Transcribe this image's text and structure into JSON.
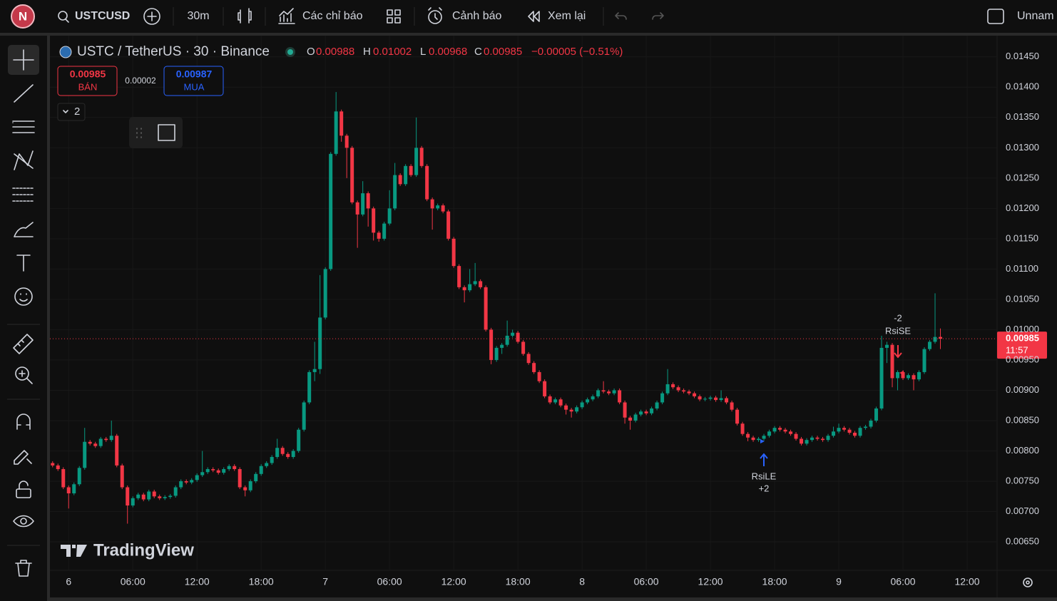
{
  "toolbar": {
    "avatar": "N",
    "symbol": "USTCUSD",
    "interval": "30m",
    "indicators": "Các chỉ báo",
    "alerts": "Cảnh báo",
    "replay": "Xem lại",
    "layout_name": "Unnam"
  },
  "legend": {
    "title": "USTC / TetherUS · 30 · Binance",
    "open_label": "O",
    "open": "0.00988",
    "high_label": "H",
    "high": "0.01002",
    "low_label": "L",
    "low": "0.00968",
    "close_label": "C",
    "close": "0.00985",
    "change": "−0.00005 (−0.51%)"
  },
  "trade": {
    "sell_price": "0.00985",
    "sell_label": "BÁN",
    "spread": "0.00002",
    "buy_price": "0.00987",
    "buy_label": "MUA"
  },
  "indicators_count": "2",
  "watermark": "TradingView",
  "chart_data": {
    "type": "candlestick",
    "colors": {
      "up": "#089981",
      "down": "#f23645"
    },
    "ylim": [
      0.00603,
      0.01485
    ],
    "xlim": [
      -0.5,
      176.6
    ],
    "grid": true,
    "yticks": [
      {
        "value": 0.0065,
        "label": "0.00650"
      },
      {
        "value": 0.007,
        "label": "0.00700"
      },
      {
        "value": 0.0075,
        "label": "0.00750"
      },
      {
        "value": 0.008,
        "label": "0.00800"
      },
      {
        "value": 0.0085,
        "label": "0.00850"
      },
      {
        "value": 0.009,
        "label": "0.00900"
      },
      {
        "value": 0.0095,
        "label": "0.00950"
      },
      {
        "value": 0.01,
        "label": "0.01000"
      },
      {
        "value": 0.0105,
        "label": "0.01050"
      },
      {
        "value": 0.011,
        "label": "0.01100"
      },
      {
        "value": 0.0115,
        "label": "0.01150"
      },
      {
        "value": 0.012,
        "label": "0.01200"
      },
      {
        "value": 0.0125,
        "label": "0.01250"
      },
      {
        "value": 0.013,
        "label": "0.01300"
      },
      {
        "value": 0.0135,
        "label": "0.01350"
      },
      {
        "value": 0.014,
        "label": "0.01400"
      },
      {
        "value": 0.0145,
        "label": "0.01450"
      }
    ],
    "xticks": [
      {
        "value": 3,
        "label": "6"
      },
      {
        "value": 15,
        "label": "06:00"
      },
      {
        "value": 27,
        "label": "12:00"
      },
      {
        "value": 39,
        "label": "18:00"
      },
      {
        "value": 51,
        "label": "7"
      },
      {
        "value": 63,
        "label": "06:00"
      },
      {
        "value": 75,
        "label": "12:00"
      },
      {
        "value": 87,
        "label": "18:00"
      },
      {
        "value": 99,
        "label": "8"
      },
      {
        "value": 111,
        "label": "06:00"
      },
      {
        "value": 123,
        "label": "12:00"
      },
      {
        "value": 135,
        "label": "18:00"
      },
      {
        "value": 147,
        "label": "9"
      },
      {
        "value": 159,
        "label": "06:00"
      },
      {
        "value": 171,
        "label": "12:00"
      }
    ],
    "last_price": {
      "value": 0.00985,
      "label": "0.00985",
      "countdown": "11:57"
    },
    "annotations": [
      {
        "label": "RsiLE",
        "quantity": "+2"
      },
      {
        "label": "RsiSE",
        "quantity": "-2"
      }
    ],
    "candles": [
      [
        0.0078,
        0.00783,
        0.00773,
        0.00776
      ],
      [
        0.00776,
        0.00779,
        0.00767,
        0.0077
      ],
      [
        0.0077,
        0.00773,
        0.00737,
        0.0074
      ],
      [
        0.0074,
        0.00743,
        0.00705,
        0.0073
      ],
      [
        0.0073,
        0.00748,
        0.00727,
        0.00745
      ],
      [
        0.00745,
        0.00775,
        0.00742,
        0.00772
      ],
      [
        0.00772,
        0.00838,
        0.00769,
        0.00815
      ],
      [
        0.00815,
        0.00818,
        0.00809,
        0.00812
      ],
      [
        0.00812,
        0.00815,
        0.00805,
        0.00808
      ],
      [
        0.00808,
        0.00823,
        0.00805,
        0.0082
      ],
      [
        0.0082,
        0.00823,
        0.00815,
        0.00818
      ],
      [
        0.00818,
        0.0085,
        0.00815,
        0.00825
      ],
      [
        0.00825,
        0.00828,
        0.00773,
        0.00776
      ],
      [
        0.00776,
        0.00779,
        0.00737,
        0.0074
      ],
      [
        0.0074,
        0.00743,
        0.0068,
        0.0071
      ],
      [
        0.0071,
        0.00725,
        0.00707,
        0.00722
      ],
      [
        0.00722,
        0.00731,
        0.00719,
        0.00728
      ],
      [
        0.00728,
        0.00731,
        0.00717,
        0.0072
      ],
      [
        0.0072,
        0.00736,
        0.00717,
        0.00733
      ],
      [
        0.00733,
        0.00736,
        0.00722,
        0.00725
      ],
      [
        0.00725,
        0.00728,
        0.00719,
        0.00722
      ],
      [
        0.00722,
        0.00727,
        0.00719,
        0.00724
      ],
      [
        0.00724,
        0.00729,
        0.00721,
        0.00726
      ],
      [
        0.00726,
        0.00743,
        0.00723,
        0.0074
      ],
      [
        0.0074,
        0.00753,
        0.00737,
        0.0075
      ],
      [
        0.0075,
        0.00753,
        0.00745,
        0.00748
      ],
      [
        0.00748,
        0.00755,
        0.00745,
        0.00752
      ],
      [
        0.00752,
        0.00763,
        0.00749,
        0.0076
      ],
      [
        0.0076,
        0.008,
        0.00757,
        0.00765
      ],
      [
        0.00765,
        0.00773,
        0.00762,
        0.0077
      ],
      [
        0.0077,
        0.00773,
        0.00765,
        0.00768
      ],
      [
        0.00768,
        0.00771,
        0.00761,
        0.00764
      ],
      [
        0.00764,
        0.00773,
        0.00761,
        0.0077
      ],
      [
        0.0077,
        0.00778,
        0.00767,
        0.00775
      ],
      [
        0.00775,
        0.00778,
        0.00767,
        0.0077
      ],
      [
        0.0077,
        0.00773,
        0.00737,
        0.0074
      ],
      [
        0.0074,
        0.00743,
        0.00725,
        0.00735
      ],
      [
        0.00735,
        0.00753,
        0.00732,
        0.0075
      ],
      [
        0.0075,
        0.00765,
        0.00747,
        0.00762
      ],
      [
        0.00762,
        0.00778,
        0.00759,
        0.00775
      ],
      [
        0.00775,
        0.00783,
        0.00772,
        0.0078
      ],
      [
        0.0078,
        0.00793,
        0.00777,
        0.0079
      ],
      [
        0.0079,
        0.0082,
        0.00787,
        0.00805
      ],
      [
        0.00805,
        0.00808,
        0.00792,
        0.00795
      ],
      [
        0.00795,
        0.00798,
        0.00787,
        0.0079
      ],
      [
        0.0079,
        0.00803,
        0.00787,
        0.008
      ],
      [
        0.008,
        0.00838,
        0.00797,
        0.00835
      ],
      [
        0.00835,
        0.00883,
        0.00832,
        0.0088
      ],
      [
        0.0088,
        0.00933,
        0.00877,
        0.0093
      ],
      [
        0.0093,
        0.0098,
        0.00915,
        0.00935
      ],
      [
        0.00935,
        0.0109,
        0.00927,
        0.0102
      ],
      [
        0.0102,
        0.01103,
        0.01017,
        0.011
      ],
      [
        0.011,
        0.01293,
        0.01097,
        0.0129
      ],
      [
        0.0129,
        0.01392,
        0.01287,
        0.0136
      ],
      [
        0.0136,
        0.01363,
        0.0131,
        0.0132
      ],
      [
        0.0132,
        0.01323,
        0.0125,
        0.013
      ],
      [
        0.013,
        0.01303,
        0.01207,
        0.0121
      ],
      [
        0.0121,
        0.01213,
        0.01135,
        0.0119
      ],
      [
        0.0119,
        0.01245,
        0.01187,
        0.01225
      ],
      [
        0.01225,
        0.01228,
        0.0117,
        0.012
      ],
      [
        0.012,
        0.01203,
        0.01147,
        0.0116
      ],
      [
        0.0116,
        0.01163,
        0.01145,
        0.0115
      ],
      [
        0.0115,
        0.01178,
        0.01147,
        0.01175
      ],
      [
        0.01175,
        0.0123,
        0.01172,
        0.012
      ],
      [
        0.012,
        0.01275,
        0.01197,
        0.01255
      ],
      [
        0.01255,
        0.01258,
        0.01237,
        0.0124
      ],
      [
        0.0124,
        0.01273,
        0.01237,
        0.0127
      ],
      [
        0.0127,
        0.01273,
        0.01252,
        0.01255
      ],
      [
        0.01255,
        0.0135,
        0.01252,
        0.013
      ],
      [
        0.013,
        0.01303,
        0.01267,
        0.0127
      ],
      [
        0.0127,
        0.01273,
        0.01212,
        0.01215
      ],
      [
        0.01215,
        0.01218,
        0.01165,
        0.012
      ],
      [
        0.012,
        0.01208,
        0.01197,
        0.01205
      ],
      [
        0.01205,
        0.01208,
        0.01192,
        0.01195
      ],
      [
        0.01195,
        0.01198,
        0.01147,
        0.0115
      ],
      [
        0.0115,
        0.01153,
        0.01102,
        0.01105
      ],
      [
        0.01105,
        0.01108,
        0.01067,
        0.0107
      ],
      [
        0.0107,
        0.01073,
        0.01045,
        0.01065
      ],
      [
        0.01065,
        0.011,
        0.01062,
        0.01075
      ],
      [
        0.01075,
        0.0111,
        0.01072,
        0.0108
      ],
      [
        0.0108,
        0.01083,
        0.01067,
        0.0107
      ],
      [
        0.0107,
        0.01073,
        0.00997,
        0.01
      ],
      [
        0.01,
        0.01003,
        0.00943,
        0.0095
      ],
      [
        0.0095,
        0.00973,
        0.00947,
        0.0097
      ],
      [
        0.0097,
        0.00978,
        0.0096,
        0.00975
      ],
      [
        0.00975,
        0.01015,
        0.00972,
        0.0099
      ],
      [
        0.0099,
        0.01,
        0.00987,
        0.00995
      ],
      [
        0.00995,
        0.00998,
        0.00977,
        0.0098
      ],
      [
        0.0098,
        0.00983,
        0.00957,
        0.0096
      ],
      [
        0.0096,
        0.00963,
        0.00942,
        0.00945
      ],
      [
        0.00945,
        0.00948,
        0.00927,
        0.0093
      ],
      [
        0.0093,
        0.00933,
        0.00912,
        0.00915
      ],
      [
        0.00915,
        0.00918,
        0.00887,
        0.0089
      ],
      [
        0.0089,
        0.00893,
        0.00877,
        0.0088
      ],
      [
        0.0088,
        0.00888,
        0.00877,
        0.00885
      ],
      [
        0.00885,
        0.00888,
        0.00872,
        0.00875
      ],
      [
        0.00875,
        0.00878,
        0.0086,
        0.00868
      ],
      [
        0.00868,
        0.00871,
        0.00855,
        0.00865
      ],
      [
        0.00865,
        0.00875,
        0.00862,
        0.00872
      ],
      [
        0.00872,
        0.00883,
        0.00869,
        0.0088
      ],
      [
        0.0088,
        0.00888,
        0.00877,
        0.00885
      ],
      [
        0.00885,
        0.00893,
        0.00882,
        0.0089
      ],
      [
        0.0089,
        0.00903,
        0.00887,
        0.009
      ],
      [
        0.009,
        0.00915,
        0.00895,
        0.00898
      ],
      [
        0.00898,
        0.00901,
        0.00892,
        0.00895
      ],
      [
        0.00895,
        0.00903,
        0.00892,
        0.009
      ],
      [
        0.009,
        0.00903,
        0.00877,
        0.0088
      ],
      [
        0.0088,
        0.00883,
        0.00845,
        0.00855
      ],
      [
        0.00855,
        0.00858,
        0.00835,
        0.0085
      ],
      [
        0.0085,
        0.00863,
        0.00847,
        0.0086
      ],
      [
        0.0086,
        0.00868,
        0.00857,
        0.00865
      ],
      [
        0.00865,
        0.00868,
        0.00859,
        0.00862
      ],
      [
        0.00862,
        0.00873,
        0.00859,
        0.0087
      ],
      [
        0.0087,
        0.00883,
        0.00867,
        0.0088
      ],
      [
        0.0088,
        0.00898,
        0.00877,
        0.00895
      ],
      [
        0.00895,
        0.00935,
        0.00892,
        0.0091
      ],
      [
        0.0091,
        0.00913,
        0.00902,
        0.00905
      ],
      [
        0.00905,
        0.00908,
        0.00897,
        0.009
      ],
      [
        0.009,
        0.00903,
        0.00895,
        0.00898
      ],
      [
        0.00898,
        0.00901,
        0.00892,
        0.00895
      ],
      [
        0.00895,
        0.00898,
        0.00887,
        0.0089
      ],
      [
        0.0089,
        0.00893,
        0.00882,
        0.00885
      ],
      [
        0.00885,
        0.00889,
        0.00882,
        0.00886
      ],
      [
        0.00886,
        0.00891,
        0.00883,
        0.00888
      ],
      [
        0.00888,
        0.00891,
        0.00881,
        0.00884
      ],
      [
        0.00884,
        0.009,
        0.00881,
        0.00887
      ],
      [
        0.00887,
        0.0089,
        0.00877,
        0.0088
      ],
      [
        0.0088,
        0.00883,
        0.00865,
        0.00868
      ],
      [
        0.00868,
        0.00871,
        0.00842,
        0.00845
      ],
      [
        0.00845,
        0.00848,
        0.00825,
        0.00828
      ],
      [
        0.00828,
        0.00831,
        0.00816,
        0.00822
      ],
      [
        0.00822,
        0.00825,
        0.00815,
        0.00818
      ],
      [
        0.00818,
        0.00823,
        0.00815,
        0.0082
      ],
      [
        0.0082,
        0.00828,
        0.00817,
        0.00825
      ],
      [
        0.00825,
        0.00835,
        0.00822,
        0.00832
      ],
      [
        0.00832,
        0.00841,
        0.00829,
        0.00838
      ],
      [
        0.00838,
        0.00841,
        0.00832,
        0.00835
      ],
      [
        0.00835,
        0.00838,
        0.00829,
        0.00832
      ],
      [
        0.00832,
        0.00835,
        0.00825,
        0.00828
      ],
      [
        0.00828,
        0.00831,
        0.00817,
        0.0082
      ],
      [
        0.0082,
        0.00823,
        0.00809,
        0.00812
      ],
      [
        0.00812,
        0.00821,
        0.00809,
        0.00818
      ],
      [
        0.00818,
        0.00825,
        0.00815,
        0.00822
      ],
      [
        0.00822,
        0.00825,
        0.00817,
        0.0082
      ],
      [
        0.0082,
        0.00823,
        0.00815,
        0.00818
      ],
      [
        0.00818,
        0.00828,
        0.00815,
        0.00825
      ],
      [
        0.00825,
        0.0084,
        0.00822,
        0.00832
      ],
      [
        0.00832,
        0.00845,
        0.00829,
        0.00838
      ],
      [
        0.00838,
        0.00841,
        0.00832,
        0.00835
      ],
      [
        0.00835,
        0.00838,
        0.00827,
        0.0083
      ],
      [
        0.0083,
        0.00833,
        0.00822,
        0.00825
      ],
      [
        0.00825,
        0.00841,
        0.00822,
        0.00838
      ],
      [
        0.00838,
        0.00843,
        0.00835,
        0.0084
      ],
      [
        0.0084,
        0.00853,
        0.00837,
        0.0085
      ],
      [
        0.0085,
        0.00873,
        0.00847,
        0.0087
      ],
      [
        0.0087,
        0.0099,
        0.00867,
        0.0097
      ],
      [
        0.0097,
        0.0098,
        0.00945,
        0.00975
      ],
      [
        0.00975,
        0.00978,
        0.00905,
        0.0092
      ],
      [
        0.0092,
        0.00933,
        0.009,
        0.0093
      ],
      [
        0.0093,
        0.00933,
        0.00917,
        0.0092
      ],
      [
        0.0092,
        0.00928,
        0.00917,
        0.00925
      ],
      [
        0.00925,
        0.00928,
        0.009,
        0.00918
      ],
      [
        0.00918,
        0.00933,
        0.00915,
        0.0093
      ],
      [
        0.0093,
        0.00971,
        0.00927,
        0.00968
      ],
      [
        0.00968,
        0.00983,
        0.00965,
        0.0098
      ],
      [
        0.0098,
        0.0106,
        0.00977,
        0.00988
      ],
      [
        0.00988,
        0.01002,
        0.00968,
        0.00985
      ]
    ]
  }
}
